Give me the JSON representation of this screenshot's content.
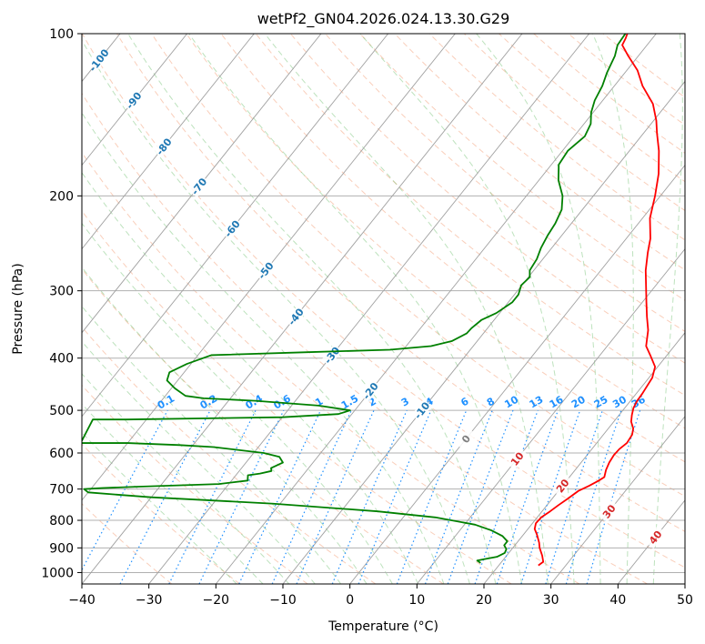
{
  "chart_data": {
    "type": "skew-t",
    "title": "wetPf2_GN04.2026.024.13.30.G29",
    "xlabel": "Temperature (°C)",
    "ylabel": "Pressure (hPa)",
    "xlim": [
      -40,
      50
    ],
    "ylim": [
      1050,
      100
    ],
    "y_scale": "log",
    "grid": true,
    "x_ticks": [
      "−40",
      "−30",
      "−20",
      "−10",
      "0",
      "10",
      "20",
      "30",
      "40",
      "50"
    ],
    "y_ticks": [
      "100",
      "200",
      "300",
      "400",
      "500",
      "600",
      "700",
      "800",
      "900",
      "1000"
    ],
    "isotherm_labels": [
      "-100",
      "-90",
      "-80",
      "-70",
      "-60",
      "-50",
      "-40",
      "-30",
      "-20",
      "-10",
      "0",
      "10",
      "20",
      "30",
      "40"
    ],
    "mixing_ratio_labels": [
      "0.1",
      "0.2",
      "0.4",
      "0.6",
      "1",
      "1.5",
      "2",
      "3",
      "4",
      "6",
      "8",
      "10",
      "13",
      "16",
      "20",
      "25",
      "30",
      "36"
    ],
    "series": [
      {
        "color": "#ff0000",
        "points": [
          [
            25.9,
            970
          ],
          [
            26.2,
            955
          ],
          [
            25.3,
            930
          ],
          [
            24.0,
            900
          ],
          [
            23.3,
            880
          ],
          [
            22.0,
            850
          ],
          [
            21.0,
            830
          ],
          [
            20.5,
            810
          ],
          [
            20.6,
            790
          ],
          [
            21.2,
            770
          ],
          [
            21.7,
            750
          ],
          [
            22.3,
            730
          ],
          [
            23.0,
            705
          ],
          [
            24.0,
            690
          ],
          [
            24.8,
            675
          ],
          [
            25.2,
            665
          ],
          [
            24.6,
            645
          ],
          [
            24.2,
            625
          ],
          [
            24.0,
            605
          ],
          [
            24.1,
            590
          ],
          [
            24.5,
            575
          ],
          [
            24.3,
            555
          ],
          [
            23.7,
            540
          ],
          [
            22.6,
            525
          ],
          [
            21.9,
            510
          ],
          [
            21.3,
            495
          ],
          [
            21.0,
            480
          ],
          [
            20.9,
            465
          ],
          [
            20.5,
            435
          ],
          [
            19.6,
            415
          ],
          [
            17.5,
            395
          ],
          [
            15.8,
            380
          ],
          [
            14.2,
            355
          ],
          [
            12.4,
            335
          ],
          [
            10.6,
            315
          ],
          [
            9.2,
            300
          ],
          [
            6.7,
            275
          ],
          [
            4.9,
            255
          ],
          [
            3.6,
            240
          ],
          [
            1.1,
            220
          ],
          [
            -0.8,
            200
          ],
          [
            -2.9,
            182
          ],
          [
            -5.6,
            165
          ],
          [
            -8.0,
            153
          ],
          [
            -9.6,
            145
          ],
          [
            -12.1,
            135
          ],
          [
            -15.8,
            125
          ],
          [
            -18.4,
            117
          ],
          [
            -21.5,
            110
          ],
          [
            -23.7,
            105
          ],
          [
            -24.0,
            102
          ],
          [
            -24.3,
            100
          ]
        ]
      },
      {
        "color": "#008000",
        "points": [
          [
            17.0,
            960
          ],
          [
            16.2,
            950
          ],
          [
            17.3,
            943
          ],
          [
            18.7,
            935
          ],
          [
            19.4,
            920
          ],
          [
            19.2,
            905
          ],
          [
            18.4,
            890
          ],
          [
            18.4,
            875
          ],
          [
            17.0,
            855
          ],
          [
            14.7,
            835
          ],
          [
            11.6,
            815
          ],
          [
            4.8,
            790
          ],
          [
            -4.5,
            770
          ],
          [
            -21.0,
            745
          ],
          [
            -40.0,
            725
          ],
          [
            -50.0,
            710
          ],
          [
            -51.0,
            700
          ],
          [
            -48.4,
            697
          ],
          [
            -43.5,
            693
          ],
          [
            -31.5,
            685
          ],
          [
            -27.6,
            675
          ],
          [
            -28.2,
            660
          ],
          [
            -26.6,
            655
          ],
          [
            -25.2,
            648
          ],
          [
            -25.6,
            640
          ],
          [
            -24.5,
            625
          ],
          [
            -25.7,
            610
          ],
          [
            -28.5,
            600
          ],
          [
            -36.7,
            585
          ],
          [
            -42.0,
            580
          ],
          [
            -50.0,
            575
          ],
          [
            -57.0,
            575
          ],
          [
            -58.0,
            520
          ],
          [
            -53.0,
            520
          ],
          [
            -30.0,
            515
          ],
          [
            -22.0,
            508
          ],
          [
            -20.7,
            500
          ],
          [
            -26.0,
            490
          ],
          [
            -36.0,
            480
          ],
          [
            -44.0,
            475
          ],
          [
            -47.0,
            470
          ],
          [
            -49.5,
            455
          ],
          [
            -51.6,
            440
          ],
          [
            -52.2,
            425
          ],
          [
            -50.6,
            410
          ],
          [
            -48.0,
            395
          ],
          [
            -34.0,
            390
          ],
          [
            -22.0,
            386
          ],
          [
            -16.3,
            380
          ],
          [
            -13.8,
            372
          ],
          [
            -12.5,
            360
          ],
          [
            -12.4,
            352
          ],
          [
            -11.9,
            340
          ],
          [
            -10.5,
            330
          ],
          [
            -9.4,
            315
          ],
          [
            -9.4,
            305
          ],
          [
            -10.1,
            293
          ],
          [
            -9.8,
            283
          ],
          [
            -10.6,
            275
          ],
          [
            -10.9,
            262
          ],
          [
            -11.6,
            250
          ],
          [
            -12.1,
            237
          ],
          [
            -12.4,
            225
          ],
          [
            -13.1,
            212
          ],
          [
            -14.6,
            200
          ],
          [
            -17.1,
            187
          ],
          [
            -18.9,
            175
          ],
          [
            -19.2,
            165
          ],
          [
            -18.4,
            155
          ],
          [
            -19.0,
            147
          ],
          [
            -20.3,
            140
          ],
          [
            -21.2,
            133
          ],
          [
            -21.8,
            125
          ],
          [
            -22.7,
            118
          ],
          [
            -23.5,
            110
          ],
          [
            -24.4,
            105
          ],
          [
            -24.6,
            100
          ]
        ]
      }
    ]
  }
}
